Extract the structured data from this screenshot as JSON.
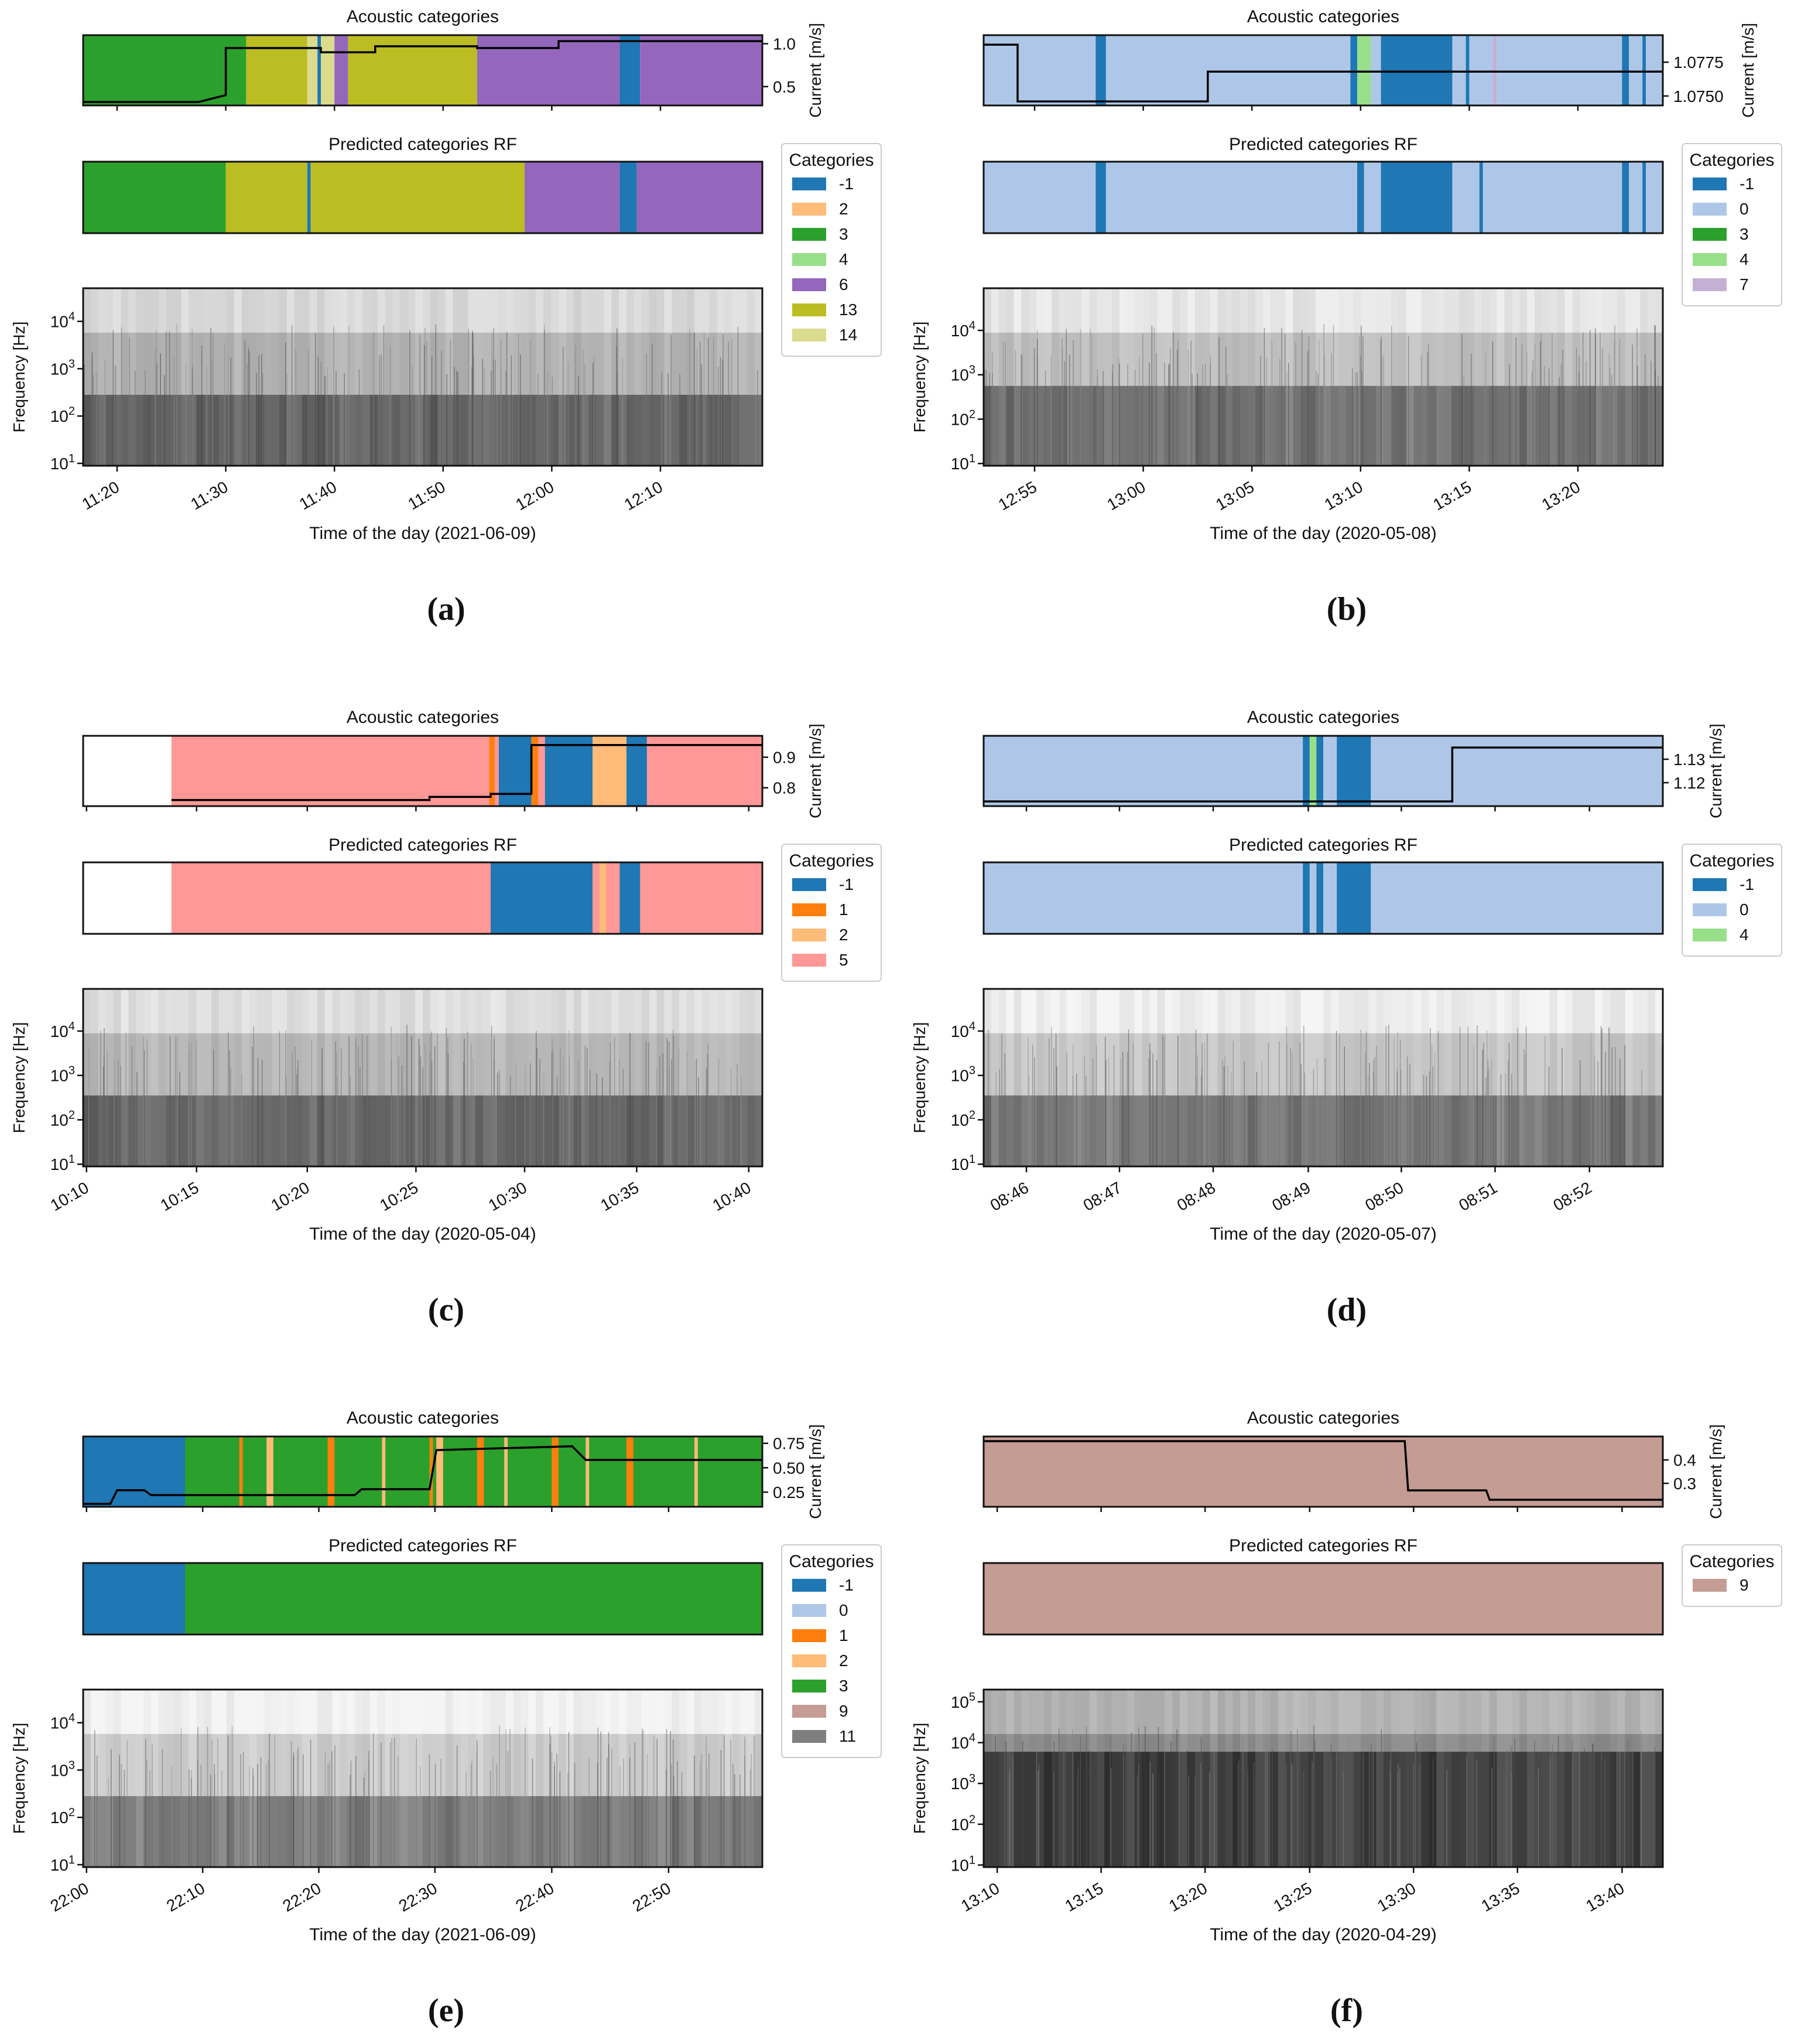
{
  "figure": {
    "strip_title_actual": "Acoustic categories",
    "strip_title_pred": "Predicted categories RF",
    "current_label": "Current [m/s]",
    "freq_label": "Frequency [Hz]",
    "legend_title": "Categories"
  },
  "colors": {
    "-1": "#1f77b4",
    "0": "#aec7e8",
    "1": "#ff7f0e",
    "2": "#ffbb78",
    "3": "#2ca02c",
    "4": "#98df8a",
    "5": "#ff9896",
    "6": "#9467bd",
    "7": "#c5b0d5",
    "9": "#c49c94",
    "11": "#7f7f7f",
    "13": "#bcbd22",
    "14": "#dbdb8d"
  },
  "chart_data": [
    {
      "panel": "(a)",
      "type": "heatmap",
      "xlabel": "Time of the day (2021-06-09)",
      "ticks": [
        "11:20",
        "11:30",
        "11:40",
        "11:50",
        "12:00",
        "12:10"
      ],
      "tick_pos": [
        0.05,
        0.21,
        0.37,
        0.53,
        0.69,
        0.85
      ],
      "legend": [
        "-1",
        "2",
        "3",
        "4",
        "6",
        "13",
        "14"
      ],
      "acoustic_segments": [
        [
          0,
          0.24,
          "3"
        ],
        [
          0.24,
          0.33,
          "13"
        ],
        [
          0.33,
          0.345,
          "14"
        ],
        [
          0.345,
          0.35,
          "-1"
        ],
        [
          0.35,
          0.37,
          "14"
        ],
        [
          0.37,
          0.39,
          "6"
        ],
        [
          0.39,
          0.58,
          "13"
        ],
        [
          0.58,
          0.79,
          "6"
        ],
        [
          0.79,
          0.82,
          "-1"
        ],
        [
          0.82,
          1,
          "6"
        ]
      ],
      "predicted_segments": [
        [
          0,
          0.21,
          "3"
        ],
        [
          0.21,
          0.33,
          "13"
        ],
        [
          0.33,
          0.335,
          "-1"
        ],
        [
          0.335,
          0.65,
          "13"
        ],
        [
          0.65,
          0.79,
          "6"
        ],
        [
          0.79,
          0.815,
          "-1"
        ],
        [
          0.815,
          1,
          "6"
        ]
      ],
      "current": {
        "yticks": [
          "1.0",
          "0.5"
        ],
        "ytick_values": [
          1.0,
          0.5
        ],
        "ylim": [
          0.28,
          1.1
        ],
        "x": [
          0,
          0.17,
          0.21,
          0.21,
          0.35,
          0.35,
          0.43,
          0.43,
          0.58,
          0.58,
          0.7,
          0.7,
          1.0
        ],
        "y": [
          0.32,
          0.32,
          0.4,
          0.95,
          0.95,
          0.9,
          0.9,
          0.97,
          0.97,
          0.95,
          0.95,
          1.03,
          1.03
        ]
      },
      "spectrogram": {
        "yticks": [
          "10^4",
          "10^3",
          "10^2",
          "10^1"
        ],
        "ylim_log": [
          0.95,
          4.7
        ],
        "dark_band_start": 0.6,
        "base_gray": 0.7
      }
    },
    {
      "panel": "(b)",
      "type": "heatmap",
      "xlabel": "Time of the day (2020-05-08)",
      "ticks": [
        "12:55",
        "13:00",
        "13:05",
        "13:10",
        "13:15",
        "13:20"
      ],
      "tick_pos": [
        0.075,
        0.235,
        0.395,
        0.555,
        0.715,
        0.875
      ],
      "legend": [
        "-1",
        "0",
        "3",
        "4",
        "7"
      ],
      "acoustic_segments": [
        [
          0,
          0.01,
          "3"
        ],
        [
          0,
          1,
          "0"
        ],
        [
          0.165,
          0.18,
          "-1"
        ],
        [
          0.54,
          0.55,
          "-1"
        ],
        [
          0.55,
          0.57,
          "4"
        ],
        [
          0.585,
          0.69,
          "-1"
        ],
        [
          0.71,
          0.715,
          "-1"
        ],
        [
          0.75,
          0.755,
          "7"
        ],
        [
          0.94,
          0.95,
          "-1"
        ],
        [
          0.97,
          0.975,
          "-1"
        ]
      ],
      "predicted_segments": [
        [
          0,
          1,
          "0"
        ],
        [
          0.165,
          0.18,
          "-1"
        ],
        [
          0.55,
          0.56,
          "-1"
        ],
        [
          0.585,
          0.69,
          "-1"
        ],
        [
          0.73,
          0.735,
          "-1"
        ],
        [
          0.94,
          0.95,
          "-1"
        ],
        [
          0.97,
          0.975,
          "-1"
        ]
      ],
      "current": {
        "yticks": [
          "1.0775",
          "1.0750"
        ],
        "ytick_values": [
          1.0775,
          1.075
        ],
        "ylim": [
          1.0743,
          1.0795
        ],
        "x": [
          0,
          0.04,
          0.05,
          0.05,
          0.33,
          0.33,
          1.0
        ],
        "y": [
          1.0788,
          1.0788,
          1.0788,
          1.0746,
          1.0746,
          1.0768,
          1.0768
        ]
      },
      "spectrogram": {
        "yticks": [
          "10^4",
          "10^3",
          "10^2",
          "10^1"
        ],
        "ylim_log": [
          0.95,
          4.95
        ],
        "dark_band_start": 0.55,
        "base_gray": 0.75
      }
    },
    {
      "panel": "(c)",
      "type": "heatmap",
      "xlabel": "Time of the day (2020-05-04)",
      "ticks": [
        "10:10",
        "10:15",
        "10:20",
        "10:25",
        "10:30",
        "10:35",
        "10:40"
      ],
      "tick_pos": [
        0.005,
        0.167,
        0.33,
        0.49,
        0.65,
        0.815,
        0.98
      ],
      "legend": [
        "-1",
        "1",
        "2",
        "5"
      ],
      "acoustic_segments": [
        [
          0.13,
          1,
          "5"
        ],
        [
          0.598,
          0.606,
          "1"
        ],
        [
          0.612,
          0.66,
          "-1"
        ],
        [
          0.66,
          0.67,
          "1"
        ],
        [
          0.68,
          0.75,
          "-1"
        ],
        [
          0.75,
          0.8,
          "2"
        ],
        [
          0.8,
          0.83,
          "-1"
        ]
      ],
      "predicted_segments": [
        [
          0.13,
          1,
          "5"
        ],
        [
          0.6,
          0.75,
          "-1"
        ],
        [
          0.76,
          0.77,
          "2"
        ],
        [
          0.79,
          0.82,
          "-1"
        ]
      ],
      "current": {
        "yticks": [
          "0.9",
          "0.8"
        ],
        "ytick_values": [
          0.9,
          0.8
        ],
        "ylim": [
          0.74,
          0.97
        ],
        "x": [
          0.13,
          0.51,
          0.51,
          0.6,
          0.6,
          0.66,
          0.66,
          1.0
        ],
        "y": [
          0.76,
          0.76,
          0.77,
          0.77,
          0.78,
          0.78,
          0.94,
          0.94
        ]
      },
      "spectrogram": {
        "yticks": [
          "10^4",
          "10^3",
          "10^2",
          "10^1"
        ],
        "ylim_log": [
          0.95,
          4.95
        ],
        "dark_band_start": 0.6,
        "base_gray": 0.72
      }
    },
    {
      "panel": "(d)",
      "type": "heatmap",
      "xlabel": "Time of the day (2020-05-07)",
      "ticks": [
        "08:46",
        "08:47",
        "08:48",
        "08:49",
        "08:50",
        "08:51",
        "08:52"
      ],
      "tick_pos": [
        0.063,
        0.2,
        0.338,
        0.478,
        0.615,
        0.753,
        0.892
      ],
      "legend": [
        "-1",
        "0",
        "4"
      ],
      "acoustic_segments": [
        [
          0,
          1,
          "0"
        ],
        [
          0.47,
          0.48,
          "-1"
        ],
        [
          0.48,
          0.49,
          "4"
        ],
        [
          0.49,
          0.5,
          "-1"
        ],
        [
          0.52,
          0.57,
          "-1"
        ]
      ],
      "predicted_segments": [
        [
          0,
          1,
          "0"
        ],
        [
          0.47,
          0.48,
          "-1"
        ],
        [
          0.49,
          0.5,
          "-1"
        ],
        [
          0.52,
          0.57,
          "-1"
        ]
      ],
      "current": {
        "yticks": [
          "1.13",
          "1.12"
        ],
        "ytick_values": [
          1.13,
          1.12
        ],
        "ylim": [
          1.11,
          1.14
        ],
        "x": [
          0,
          0.68,
          0.69,
          0.69,
          1.0
        ],
        "y": [
          1.112,
          1.112,
          1.112,
          1.135,
          1.135
        ]
      },
      "spectrogram": {
        "yticks": [
          "10^4",
          "10^3",
          "10^2",
          "10^1"
        ],
        "ylim_log": [
          0.95,
          4.95
        ],
        "dark_band_start": 0.6,
        "base_gray": 0.78
      }
    },
    {
      "panel": "(e)",
      "type": "heatmap",
      "xlabel": "Time of the day (2021-06-09)",
      "ticks": [
        "22:00",
        "22:10",
        "22:20",
        "22:30",
        "22:40",
        "22:50"
      ],
      "tick_pos": [
        0.005,
        0.176,
        0.347,
        0.518,
        0.69,
        0.862
      ],
      "legend": [
        "-1",
        "0",
        "1",
        "2",
        "3",
        "9",
        "11"
      ],
      "acoustic_segments": [
        [
          0,
          0.15,
          "-1"
        ],
        [
          0.15,
          1,
          "3"
        ],
        [
          0.23,
          0.235,
          "1"
        ],
        [
          0.27,
          0.28,
          "2"
        ],
        [
          0.36,
          0.37,
          "1"
        ],
        [
          0.44,
          0.445,
          "2"
        ],
        [
          0.51,
          0.515,
          "1"
        ],
        [
          0.52,
          0.53,
          "2"
        ],
        [
          0.58,
          0.59,
          "1"
        ],
        [
          0.62,
          0.625,
          "2"
        ],
        [
          0.69,
          0.7,
          "1"
        ],
        [
          0.74,
          0.745,
          "2"
        ],
        [
          0.8,
          0.81,
          "1"
        ],
        [
          0.9,
          0.905,
          "2"
        ]
      ],
      "predicted_segments": [
        [
          0,
          0.15,
          "-1"
        ],
        [
          0.15,
          1,
          "3"
        ]
      ],
      "current": {
        "yticks": [
          "0.75",
          "0.50",
          "0.25"
        ],
        "ytick_values": [
          0.75,
          0.5,
          0.25
        ],
        "ylim": [
          0.1,
          0.82
        ],
        "x": [
          0,
          0.04,
          0.05,
          0.09,
          0.1,
          0.4,
          0.41,
          0.51,
          0.52,
          0.72,
          0.74,
          1.0
        ],
        "y": [
          0.13,
          0.13,
          0.27,
          0.27,
          0.22,
          0.22,
          0.28,
          0.28,
          0.68,
          0.72,
          0.58,
          0.58
        ]
      },
      "spectrogram": {
        "yticks": [
          "10^4",
          "10^3",
          "10^2",
          "10^1"
        ],
        "ylim_log": [
          0.95,
          4.7
        ],
        "dark_band_start": 0.6,
        "base_gray": 0.8
      }
    },
    {
      "panel": "(f)",
      "type": "heatmap",
      "xlabel": "Time of the day (2020-04-29)",
      "ticks": [
        "13:10",
        "13:15",
        "13:20",
        "13:25",
        "13:30",
        "13:35",
        "13:40"
      ],
      "tick_pos": [
        0.02,
        0.173,
        0.326,
        0.48,
        0.633,
        0.786,
        0.94
      ],
      "legend": [
        "9"
      ],
      "acoustic_segments": [
        [
          0,
          1,
          "9"
        ]
      ],
      "predicted_segments": [
        [
          0,
          1,
          "9"
        ]
      ],
      "current": {
        "yticks": [
          "0.4",
          "0.3"
        ],
        "ytick_values": [
          0.4,
          0.3
        ],
        "ylim": [
          0.2,
          0.5
        ],
        "x": [
          0,
          0.62,
          0.625,
          0.74,
          0.745,
          1.0
        ],
        "y": [
          0.48,
          0.48,
          0.27,
          0.27,
          0.23,
          0.23
        ]
      },
      "spectrogram": {
        "yticks": [
          "10^5",
          "10^4",
          "10^3",
          "10^2",
          "10^1"
        ],
        "ylim_log": [
          0.95,
          5.3
        ],
        "dark_band_start": 0.35,
        "base_gray": 0.55
      }
    }
  ]
}
